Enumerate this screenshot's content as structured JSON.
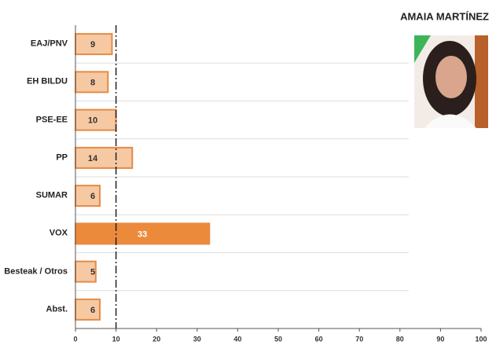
{
  "chart_data": {
    "type": "bar",
    "orientation": "horizontal",
    "title": "AMAIA MARTÍNEZ",
    "categories": [
      "EAJ/PNV",
      "EH BILDU",
      "PSE-EE",
      "PP",
      "SUMAR",
      "VOX",
      "Besteak / Otros",
      "Abst."
    ],
    "values": [
      9,
      8,
      10,
      14,
      6,
      33,
      5,
      6
    ],
    "colors": [
      "#f6c9a3",
      "#f6c9a3",
      "#f6c9a3",
      "#f6c9a3",
      "#f6c9a3",
      "#ec8a3c",
      "#f6c9a3",
      "#f6c9a3"
    ],
    "reference_x": 10,
    "xlim": [
      0,
      100
    ],
    "xticks": [
      0,
      10,
      20,
      30,
      40,
      50,
      60,
      70,
      80,
      90,
      100
    ],
    "grid": true
  }
}
